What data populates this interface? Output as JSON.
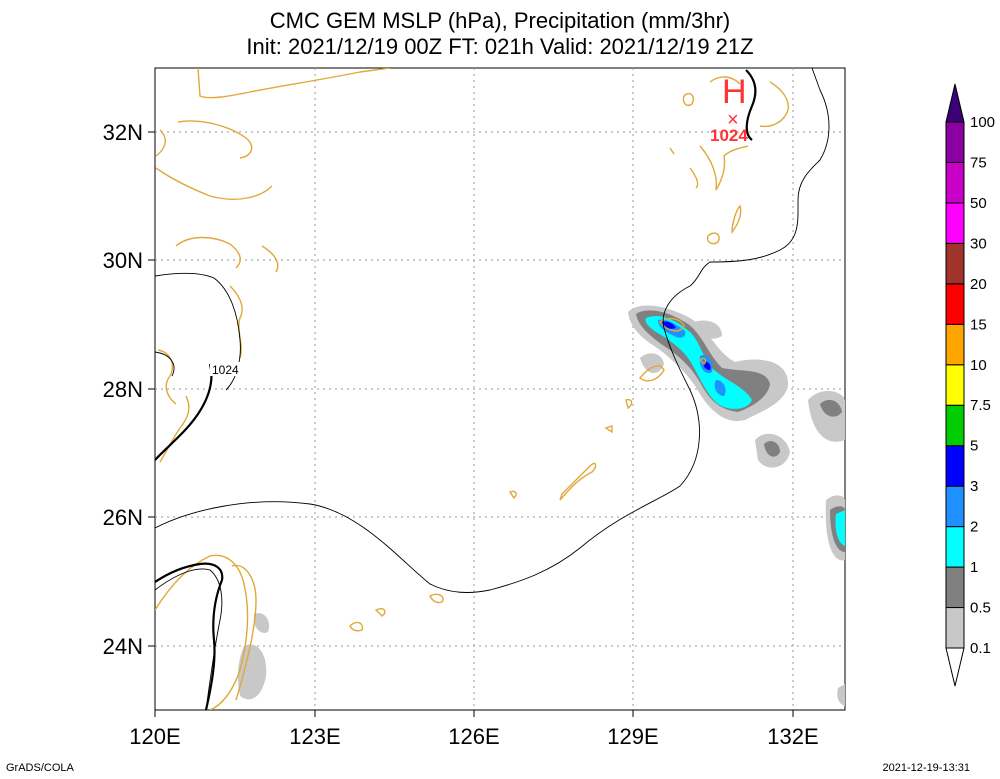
{
  "title": {
    "line1": "CMC GEM MSLP (hPa), Precipitation (mm/3hr)",
    "line2": "Init: 2021/12/19 00Z  FT: 021h  Valid: 2021/12/19 21Z"
  },
  "axes": {
    "lat_labels": [
      "32N",
      "30N",
      "28N",
      "26N",
      "24N"
    ],
    "lon_labels": [
      "120E",
      "123E",
      "126E",
      "129E",
      "132E"
    ]
  },
  "high_marker": {
    "letter": "H",
    "symbol": "×",
    "value": "1024",
    "color": "#ff3333"
  },
  "isobar_label": "1024",
  "colorbar": {
    "labels": [
      "0.1",
      "0.5",
      "1",
      "2",
      "3",
      "5",
      "7.5",
      "10",
      "15",
      "20",
      "30",
      "50",
      "75",
      "100"
    ],
    "colors": [
      "#ffffff",
      "#c8c8c8",
      "#808080",
      "#00ffff",
      "#1e90ff",
      "#0000ff",
      "#00cc00",
      "#ffff00",
      "#ffa500",
      "#ff0000",
      "#a0342a",
      "#ff00ff",
      "#c800c8",
      "#8b00a0",
      "#3c0078"
    ]
  },
  "footer": {
    "left": "GrADS/COLA",
    "right": "2021-12-19-13:31"
  }
}
